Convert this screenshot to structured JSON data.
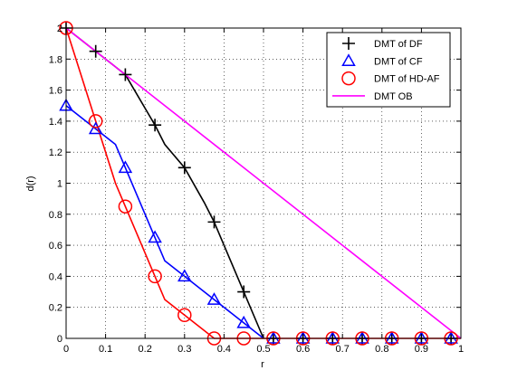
{
  "chart_data": {
    "type": "line",
    "title": "",
    "xlabel": "r",
    "ylabel": "d(r)",
    "xlim": [
      0,
      1
    ],
    "ylim": [
      0,
      2
    ],
    "xticks": [
      "0",
      "0.1",
      "0.2",
      "0.3",
      "0.4",
      "0.5",
      "0.6",
      "0.7",
      "0.8",
      "0.9",
      "1"
    ],
    "yticks": [
      "0",
      "0.2",
      "0.4",
      "0.6",
      "0.8",
      "1",
      "1.2",
      "1.4",
      "1.6",
      "1.8",
      "2"
    ],
    "grid": true,
    "legend_position": "top-right",
    "series": [
      {
        "name": "DMT of DF",
        "color": "#000000",
        "marker": "plus",
        "line": [
          [
            0,
            2
          ],
          [
            0.075,
            1.85
          ],
          [
            0.15,
            1.7
          ],
          [
            0.225,
            1.375
          ],
          [
            0.25,
            1.25
          ],
          [
            0.3,
            1.1
          ],
          [
            0.35,
            0.875
          ],
          [
            0.375,
            0.75
          ],
          [
            0.45,
            0.3
          ],
          [
            0.5,
            0
          ]
        ],
        "markers": [
          [
            0,
            2
          ],
          [
            0.075,
            1.85
          ],
          [
            0.15,
            1.7
          ],
          [
            0.225,
            1.375
          ],
          [
            0.3,
            1.1
          ],
          [
            0.375,
            0.75
          ],
          [
            0.45,
            0.3
          ],
          [
            0.525,
            0
          ],
          [
            0.6,
            0
          ],
          [
            0.675,
            0
          ],
          [
            0.75,
            0
          ],
          [
            0.825,
            0
          ],
          [
            0.9,
            0
          ],
          [
            0.975,
            0
          ]
        ]
      },
      {
        "name": "DMT of CF",
        "color": "#0000ff",
        "marker": "triangle",
        "line": [
          [
            0,
            1.5
          ],
          [
            0.075,
            1.35
          ],
          [
            0.125,
            1.25
          ],
          [
            0.15,
            1.1
          ],
          [
            0.2,
            0.8
          ],
          [
            0.225,
            0.65
          ],
          [
            0.25,
            0.5
          ],
          [
            0.3,
            0.4
          ],
          [
            0.375,
            0.25
          ],
          [
            0.45,
            0.1
          ],
          [
            0.5,
            0
          ]
        ],
        "markers": [
          [
            0,
            1.5
          ],
          [
            0.075,
            1.35
          ],
          [
            0.15,
            1.1
          ],
          [
            0.225,
            0.65
          ],
          [
            0.3,
            0.4
          ],
          [
            0.375,
            0.25
          ],
          [
            0.45,
            0.1
          ],
          [
            0.525,
            0
          ],
          [
            0.6,
            0
          ],
          [
            0.675,
            0
          ],
          [
            0.75,
            0
          ],
          [
            0.825,
            0
          ],
          [
            0.9,
            0
          ],
          [
            0.975,
            0
          ]
        ]
      },
      {
        "name": "DMT of HD-AF",
        "color": "#ff0000",
        "marker": "circle",
        "line": [
          [
            0,
            2
          ],
          [
            0.075,
            1.4
          ],
          [
            0.125,
            1.0
          ],
          [
            0.15,
            0.85
          ],
          [
            0.2,
            0.55
          ],
          [
            0.225,
            0.4
          ],
          [
            0.25,
            0.25
          ],
          [
            0.3,
            0.15
          ],
          [
            0.35,
            0.05
          ],
          [
            0.375,
            0
          ],
          [
            1,
            0
          ]
        ],
        "markers": [
          [
            0,
            2
          ],
          [
            0.075,
            1.4
          ],
          [
            0.15,
            0.85
          ],
          [
            0.225,
            0.4
          ],
          [
            0.3,
            0.15
          ],
          [
            0.375,
            0
          ],
          [
            0.45,
            0
          ],
          [
            0.525,
            0
          ],
          [
            0.6,
            0
          ],
          [
            0.675,
            0
          ],
          [
            0.75,
            0
          ],
          [
            0.825,
            0
          ],
          [
            0.9,
            0
          ],
          [
            0.975,
            0
          ]
        ]
      },
      {
        "name": "DMT OB",
        "color": "#ff00ff",
        "marker": "none",
        "line": [
          [
            0,
            2
          ],
          [
            1,
            0
          ]
        ],
        "markers": []
      }
    ]
  }
}
